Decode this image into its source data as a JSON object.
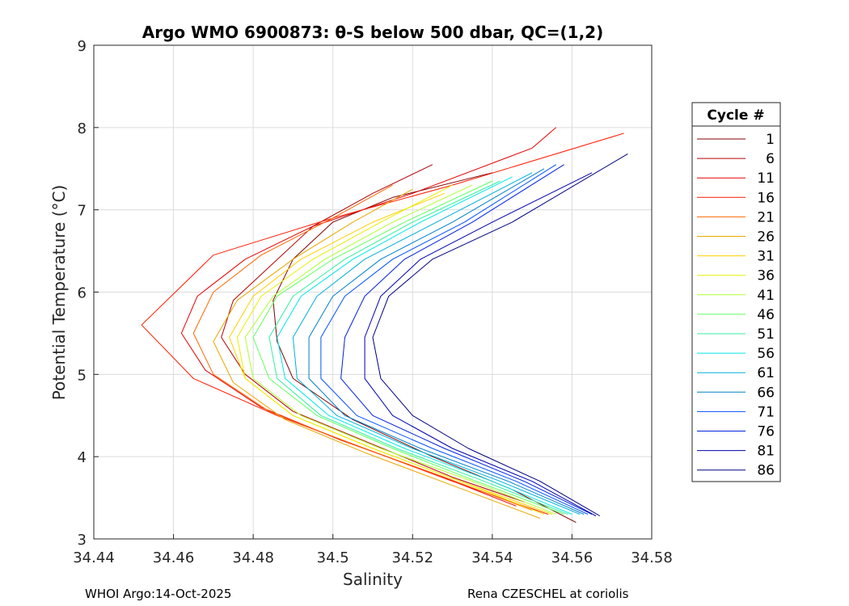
{
  "chart_data": {
    "type": "line",
    "title": "Argo WMO 6900873: θ-S below 500 dbar,  QC=(1,2)",
    "xlabel": "Salinity",
    "ylabel": "Potential Temperature (°C)",
    "xlim": [
      34.44,
      34.58
    ],
    "ylim": [
      3,
      9
    ],
    "x_ticks": [
      "34.44",
      "34.46",
      "34.48",
      "34.5",
      "34.52",
      "34.54",
      "34.56",
      "34.58"
    ],
    "y_ticks": [
      "3",
      "4",
      "5",
      "6",
      "7",
      "8",
      "9"
    ],
    "grid": true,
    "legend": {
      "title": "Cycle #",
      "placement": "outside-right",
      "entries": [
        {
          "label": "1",
          "color": "#800000"
        },
        {
          "label": "6",
          "color": "#b30000"
        },
        {
          "label": "11",
          "color": "#e60000"
        },
        {
          "label": "16",
          "color": "#ff1a00"
        },
        {
          "label": "21",
          "color": "#ff6600"
        },
        {
          "label": "26",
          "color": "#e6a800"
        },
        {
          "label": "31",
          "color": "#ffd000"
        },
        {
          "label": "36",
          "color": "#e6f000"
        },
        {
          "label": "41",
          "color": "#b0ff30"
        },
        {
          "label": "46",
          "color": "#60ff60"
        },
        {
          "label": "51",
          "color": "#30f0a0"
        },
        {
          "label": "56",
          "color": "#00e8e8"
        },
        {
          "label": "61",
          "color": "#00b0d8"
        },
        {
          "label": "66",
          "color": "#0080c8"
        },
        {
          "label": "71",
          "color": "#0050ff"
        },
        {
          "label": "76",
          "color": "#0020e0"
        },
        {
          "label": "81",
          "color": "#0000b0"
        },
        {
          "label": "86",
          "color": "#000080"
        }
      ]
    },
    "series": [
      {
        "name": "1",
        "color": "#800000",
        "x": [
          34.561,
          34.545,
          34.525,
          34.505,
          34.49,
          34.486,
          34.485,
          34.49,
          34.5,
          34.515,
          34.54
        ],
        "y": [
          3.2,
          3.6,
          4.0,
          4.45,
          4.95,
          5.4,
          5.9,
          6.4,
          6.85,
          7.15,
          7.45
        ]
      },
      {
        "name": "6",
        "color": "#b30000",
        "x": [
          34.548,
          34.53,
          34.51,
          34.49,
          34.478,
          34.472,
          34.475,
          34.485,
          34.495,
          34.51,
          34.525
        ],
        "y": [
          3.45,
          3.75,
          4.15,
          4.55,
          5.0,
          5.45,
          5.9,
          6.35,
          6.8,
          7.2,
          7.55
        ]
      },
      {
        "name": "11",
        "color": "#e60000",
        "x": [
          34.546,
          34.525,
          34.502,
          34.482,
          34.468,
          34.462,
          34.466,
          34.478,
          34.495,
          34.52,
          34.55,
          34.556
        ],
        "y": [
          3.4,
          3.8,
          4.2,
          4.6,
          5.05,
          5.5,
          5.95,
          6.4,
          6.8,
          7.2,
          7.75,
          8.0
        ]
      },
      {
        "name": "16",
        "color": "#ff1a00",
        "x": [
          34.554,
          34.53,
          34.508,
          34.486,
          34.465,
          34.452,
          34.47,
          34.5,
          34.53,
          34.573
        ],
        "y": [
          3.3,
          3.7,
          4.1,
          4.5,
          4.95,
          5.6,
          6.45,
          6.9,
          7.3,
          7.93
        ]
      },
      {
        "name": "21",
        "color": "#ff6600",
        "x": [
          34.55,
          34.528,
          34.505,
          34.484,
          34.47,
          34.465,
          34.47,
          34.482,
          34.5,
          34.515
        ],
        "y": [
          3.35,
          3.75,
          4.15,
          4.55,
          5.0,
          5.5,
          6.0,
          6.45,
          6.9,
          7.3
        ]
      },
      {
        "name": "26",
        "color": "#e6a800",
        "x": [
          34.552,
          34.53,
          34.508,
          34.488,
          34.475,
          34.47,
          34.476,
          34.49,
          34.505,
          34.52
        ],
        "y": [
          3.25,
          3.65,
          4.05,
          4.45,
          4.9,
          5.4,
          5.9,
          6.4,
          6.85,
          7.25
        ]
      },
      {
        "name": "31",
        "color": "#ffd000",
        "x": [
          34.555,
          34.532,
          34.51,
          34.49,
          34.478,
          34.474,
          34.48,
          34.492,
          34.51,
          34.528
        ],
        "y": [
          3.3,
          3.7,
          4.1,
          4.5,
          4.95,
          5.45,
          5.95,
          6.4,
          6.85,
          7.2
        ]
      },
      {
        "name": "36",
        "color": "#e6f000",
        "x": [
          34.553,
          34.532,
          34.51,
          34.49,
          34.478,
          34.476,
          34.482,
          34.495,
          34.512,
          34.53
        ],
        "y": [
          3.3,
          3.7,
          4.1,
          4.5,
          4.95,
          5.45,
          5.95,
          6.4,
          6.85,
          7.3
        ]
      },
      {
        "name": "41",
        "color": "#b0ff30",
        "x": [
          34.556,
          34.535,
          34.512,
          34.492,
          34.48,
          34.478,
          34.485,
          34.498,
          34.515,
          34.535
        ],
        "y": [
          3.3,
          3.7,
          4.1,
          4.5,
          4.95,
          5.45,
          5.95,
          6.4,
          6.85,
          7.3
        ]
      },
      {
        "name": "46",
        "color": "#60ff60",
        "x": [
          34.558,
          34.536,
          34.515,
          34.496,
          34.484,
          34.48,
          34.486,
          34.5,
          34.518,
          34.54
        ],
        "y": [
          3.3,
          3.7,
          4.1,
          4.5,
          4.95,
          5.45,
          5.95,
          6.4,
          6.85,
          7.35
        ]
      },
      {
        "name": "51",
        "color": "#30f0a0",
        "x": [
          34.559,
          34.538,
          34.516,
          34.497,
          34.486,
          34.484,
          34.49,
          34.503,
          34.52,
          34.542
        ],
        "y": [
          3.3,
          3.7,
          4.1,
          4.5,
          4.95,
          5.45,
          5.95,
          6.4,
          6.85,
          7.35
        ]
      },
      {
        "name": "56",
        "color": "#00e8e8",
        "x": [
          34.56,
          34.54,
          34.518,
          34.499,
          34.488,
          34.486,
          34.492,
          34.505,
          34.522,
          34.545
        ],
        "y": [
          3.3,
          3.7,
          4.1,
          4.5,
          4.95,
          5.45,
          5.95,
          6.4,
          6.85,
          7.4
        ]
      },
      {
        "name": "61",
        "color": "#00b0d8",
        "x": [
          34.562,
          34.542,
          34.52,
          34.501,
          34.491,
          34.49,
          34.496,
          34.508,
          34.526,
          34.55
        ],
        "y": [
          3.3,
          3.7,
          4.1,
          4.5,
          4.95,
          5.45,
          5.95,
          6.4,
          6.85,
          7.45
        ]
      },
      {
        "name": "66",
        "color": "#0080c8",
        "x": [
          34.563,
          34.544,
          34.522,
          34.503,
          34.494,
          34.494,
          34.5,
          34.512,
          34.53,
          34.553
        ],
        "y": [
          3.3,
          3.7,
          4.1,
          4.5,
          4.95,
          5.45,
          5.95,
          6.4,
          6.85,
          7.5
        ]
      },
      {
        "name": "71",
        "color": "#0050ff",
        "x": [
          34.564,
          34.546,
          34.525,
          34.506,
          34.497,
          34.497,
          34.503,
          34.515,
          34.533,
          34.556
        ],
        "y": [
          3.3,
          3.7,
          4.1,
          4.5,
          4.95,
          5.45,
          5.95,
          6.4,
          6.85,
          7.55
        ]
      },
      {
        "name": "76",
        "color": "#0020e0",
        "x": [
          34.565,
          34.548,
          34.528,
          34.51,
          34.502,
          34.503,
          34.508,
          34.518,
          34.535,
          34.558
        ],
        "y": [
          3.3,
          3.7,
          4.1,
          4.5,
          4.95,
          5.45,
          5.95,
          6.4,
          6.85,
          7.55
        ]
      },
      {
        "name": "81",
        "color": "#0000b0",
        "x": [
          34.566,
          34.55,
          34.53,
          34.515,
          34.508,
          34.508,
          34.512,
          34.522,
          34.54,
          34.565
        ],
        "y": [
          3.28,
          3.7,
          4.1,
          4.5,
          4.95,
          5.45,
          5.95,
          6.4,
          6.85,
          7.45
        ]
      },
      {
        "name": "86",
        "color": "#000080",
        "x": [
          34.567,
          34.552,
          34.534,
          34.52,
          34.512,
          34.51,
          34.514,
          34.525,
          34.545,
          34.574
        ],
        "y": [
          3.28,
          3.7,
          4.1,
          4.5,
          4.95,
          5.45,
          5.95,
          6.4,
          6.85,
          7.68
        ]
      }
    ]
  },
  "footer": {
    "left": "WHOI Argo:14-Oct-2025",
    "right": "Rena CZESCHEL at coriolis"
  }
}
